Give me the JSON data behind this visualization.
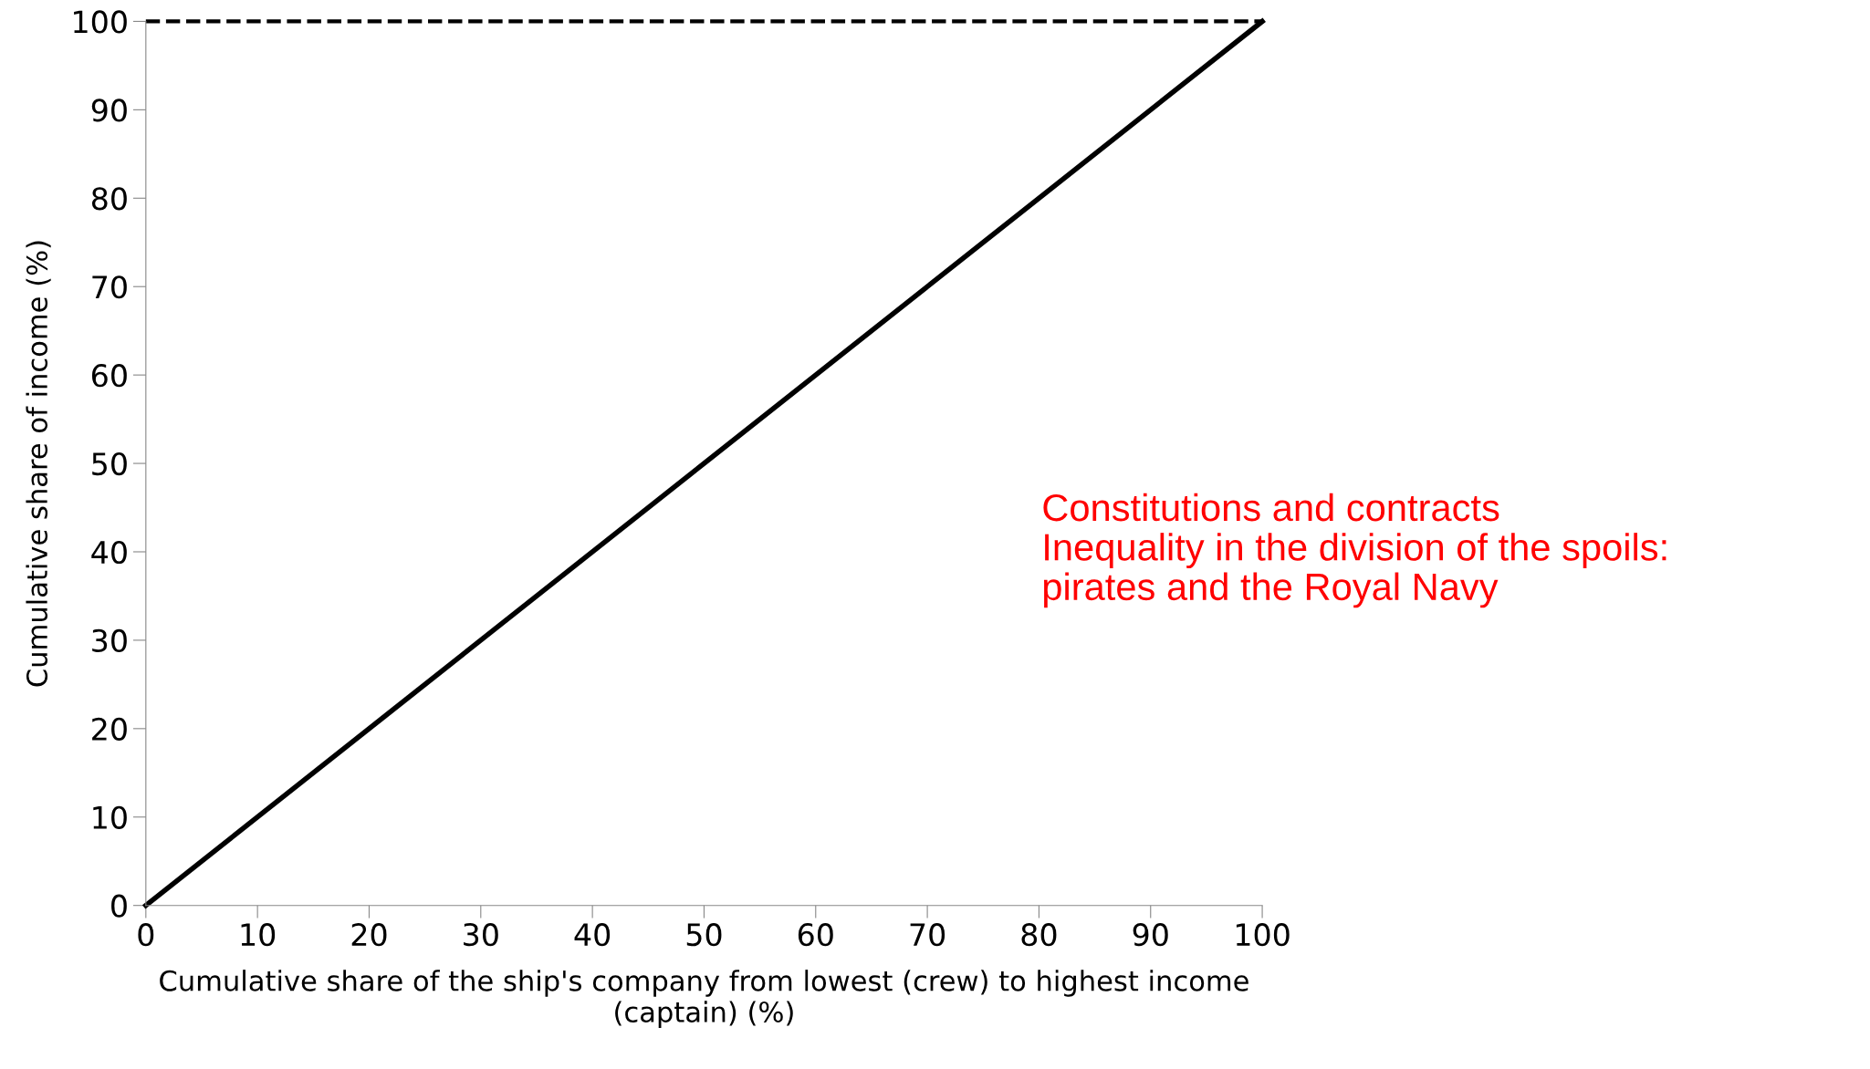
{
  "chart_data": {
    "type": "line",
    "x": [
      0,
      100
    ],
    "series": [
      {
        "color": "#000000",
        "values": [
          0,
          100
        ]
      }
    ],
    "xlabel": "Cumulative share of the ship's company from lowest (crew) to highest income\n(captain) (%)",
    "ylabel": "Cumulative share of income (%)",
    "xlim": [
      0,
      100
    ],
    "xticks": [
      0,
      10,
      20,
      30,
      40,
      50,
      60,
      70,
      80,
      90,
      100
    ],
    "ylim": [
      0,
      100
    ],
    "yticks": [
      0,
      10,
      20,
      30,
      40,
      50,
      60,
      70,
      80,
      90,
      100
    ],
    "ref_lines": [
      {
        "axis": "y",
        "value": 100,
        "color": "#000000",
        "line_style": "dashed"
      }
    ],
    "annotations": [
      "Constitutions and contracts\nInequality in the division of the spoils:\npirates and the Royal Navy"
    ],
    "grid": false,
    "legend": false,
    "marker": "none",
    "line_style": "solid"
  }
}
